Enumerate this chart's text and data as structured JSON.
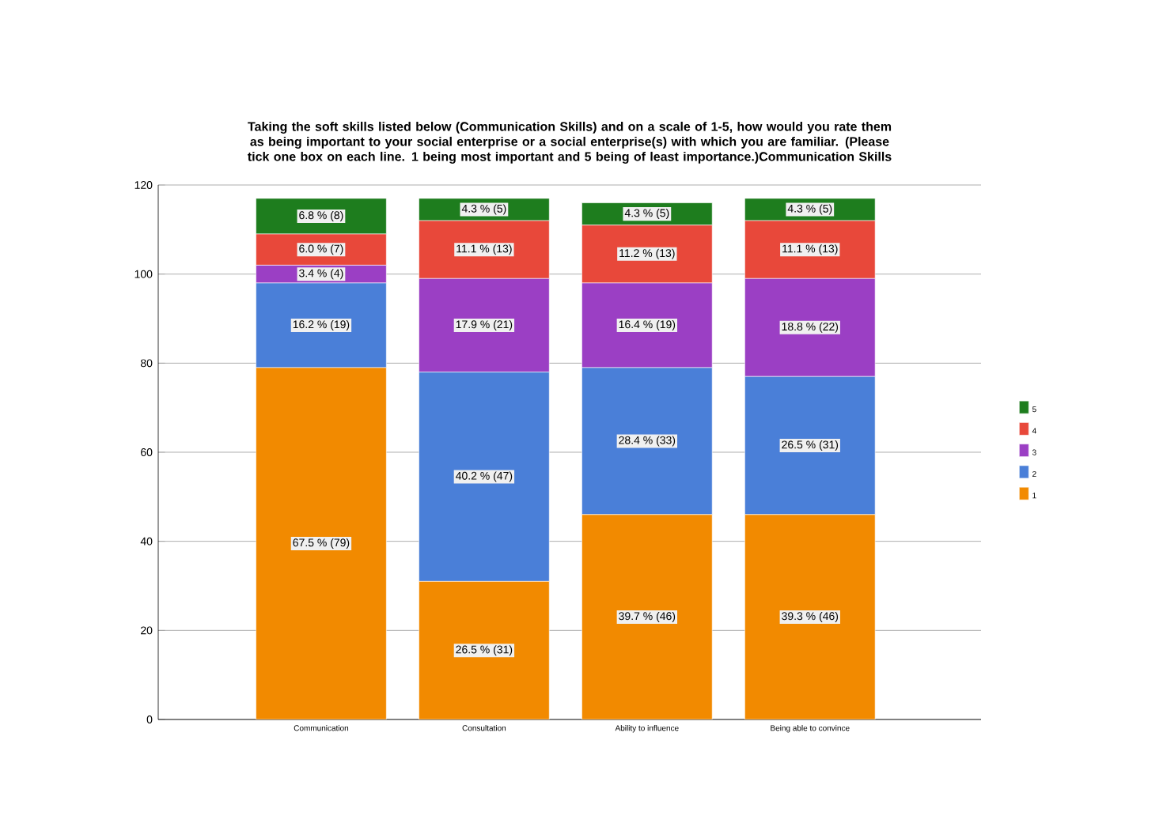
{
  "chart_data": {
    "type": "bar",
    "stacked": true,
    "title": "Taking the soft skills listed below (Communication Skills) and on a scale of  1-5,  how would you rate them as being important to your social enterprise or a social enterprise(s) with which you are familiar. (Please tick one box on each line.  1 being most important and 5 being of least importance.)Communication Skills",
    "categories": [
      "Communication",
      "Consultation",
      "Ability to influence",
      "Being able to convince"
    ],
    "series": [
      {
        "name": "1",
        "color": "#f28a00",
        "values": [
          79,
          31,
          46,
          46
        ],
        "value_labels": [
          "67.5 % (79)",
          "26.5 % (31)",
          "39.7 % (46)",
          "39.3 % (46)"
        ]
      },
      {
        "name": "2",
        "color": "#4a7fd8",
        "values": [
          19,
          47,
          33,
          31
        ],
        "value_labels": [
          "16.2 % (19)",
          "40.2 % (47)",
          "28.4 % (33)",
          "26.5 % (31)"
        ]
      },
      {
        "name": "3",
        "color": "#9b3fc4",
        "values": [
          4,
          21,
          19,
          22
        ],
        "value_labels": [
          "3.4 % (4)",
          "17.9 % (21)",
          "16.4 % (19)",
          "18.8 % (22)"
        ]
      },
      {
        "name": "4",
        "color": "#e8483a",
        "values": [
          7,
          13,
          13,
          13
        ],
        "value_labels": [
          "6.0 % (7)",
          "11.1 % (13)",
          "11.2 % (13)",
          "11.1 % (13)"
        ]
      },
      {
        "name": "5",
        "color": "#1e7d1e",
        "values": [
          8,
          5,
          5,
          5
        ],
        "value_labels": [
          "6.8 % (8)",
          "4.3 % (5)",
          "4.3 % (5)",
          "4.3 % (5)"
        ]
      }
    ],
    "ylim": [
      0,
      120
    ],
    "yticks": [
      0,
      20,
      40,
      60,
      80,
      100,
      120
    ],
    "grid": "y",
    "legend": "right"
  }
}
